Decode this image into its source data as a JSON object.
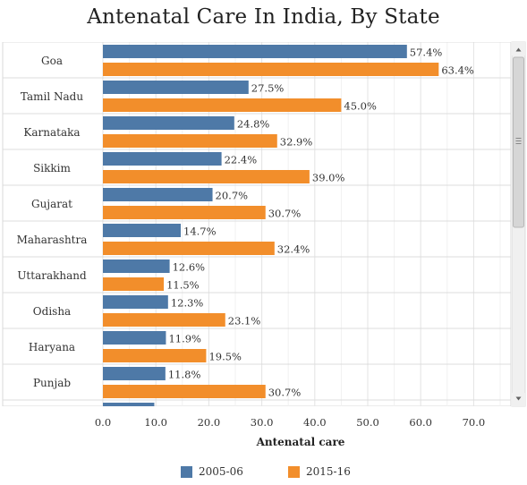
{
  "chart_data": {
    "type": "bar",
    "orientation": "horizontal",
    "title": "Antenatal Care In India, By State",
    "xlabel": "Antenatal care",
    "ylabel": "",
    "xlim": [
      0,
      75
    ],
    "xticks": [
      "0.0",
      "10.0",
      "20.0",
      "30.0",
      "40.0",
      "50.0",
      "60.0",
      "70.0"
    ],
    "categories": [
      "Goa",
      "Tamil Nadu",
      "Karnataka",
      "Sikkim",
      "Gujarat",
      "Maharashtra",
      "Uttarakhand",
      "Odisha",
      "Haryana",
      "Punjab",
      ""
    ],
    "series": [
      {
        "name": "2005-06",
        "color": "#4e79a7",
        "values": [
          57.4,
          27.5,
          24.8,
          22.4,
          20.7,
          14.7,
          12.6,
          12.3,
          11.9,
          11.8,
          9.7
        ],
        "labels": [
          "57.4%",
          "27.5%",
          "24.8%",
          "22.4%",
          "20.7%",
          "14.7%",
          "12.6%",
          "12.3%",
          "11.9%",
          "11.8%",
          "9.7%"
        ]
      },
      {
        "name": "2015-16",
        "color": "#f28e2b",
        "values": [
          63.4,
          45.0,
          32.9,
          39.0,
          30.7,
          32.4,
          11.5,
          23.1,
          19.5,
          30.7,
          null
        ],
        "labels": [
          "63.4%",
          "45.0%",
          "32.9%",
          "39.0%",
          "30.7%",
          "32.4%",
          "11.5%",
          "23.1%",
          "19.5%",
          "30.7%",
          ""
        ]
      }
    ],
    "grid": true,
    "legend_position": "bottom",
    "scrollbar": true
  }
}
